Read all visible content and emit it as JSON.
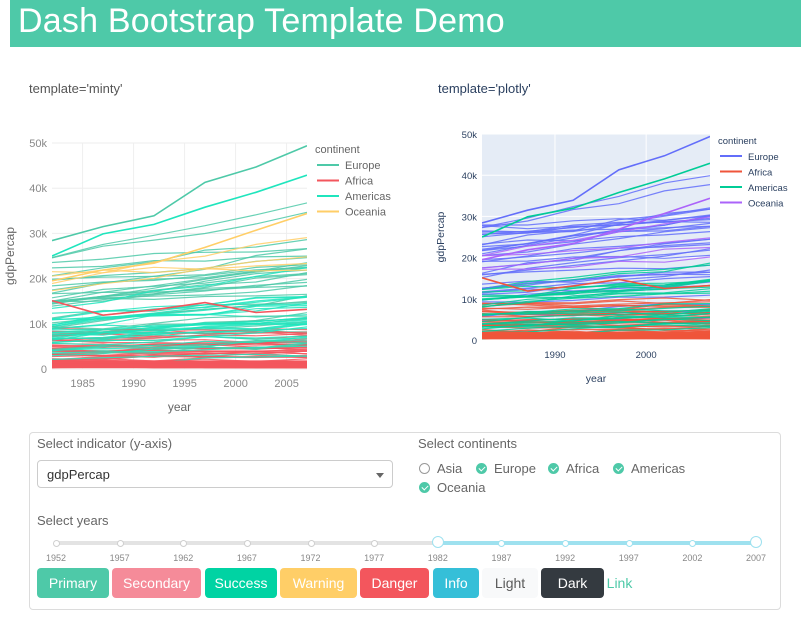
{
  "header": {
    "title": "Dash Bootstrap Template Demo"
  },
  "left_chart": {
    "template_label": "template='minty'",
    "palette": [
      "#4ec9a8",
      "#f3565d",
      "#1fe5bd",
      "#ffce67"
    ],
    "grid": "#eeeeee",
    "bg": "#ffffff",
    "tick_color": "#888888",
    "label_color": "#666666"
  },
  "right_chart": {
    "template_label": "template='plotly'",
    "palette": [
      "#636efa",
      "#ef553b",
      "#00cc96",
      "#ab63fa"
    ],
    "grid": "#ffffff",
    "bg": "#e5ecf6",
    "tick_color": "#2a3f5f",
    "label_color": "#2a3f5f"
  },
  "chart_data": [
    {
      "type": "line",
      "title": "",
      "xlabel": "year",
      "ylabel": "gdpPercap",
      "xlim": [
        1982,
        2007
      ],
      "ylim": [
        0,
        50000
      ],
      "x_ticks": [
        1985,
        1990,
        1995,
        2000,
        2005
      ],
      "x_tick_labels": [
        "1985",
        "1990",
        "1995",
        "2000",
        "2005"
      ],
      "y_ticks": [
        0,
        10000,
        20000,
        30000,
        40000,
        50000
      ],
      "y_tick_labels": [
        "0",
        "10k",
        "20k",
        "30k",
        "40k",
        "50k"
      ],
      "legend": {
        "title": "continent",
        "position": "top-right"
      },
      "x": [
        1982,
        1987,
        1992,
        1997,
        2002,
        2007
      ],
      "series": [
        {
          "name": "Europe",
          "values": [
            28400,
            31500,
            33900,
            41300,
            44700,
            49400
          ]
        },
        {
          "name": "Africa",
          "values": [
            15100,
            11900,
            13100,
            14700,
            12500,
            13200
          ]
        },
        {
          "name": "Americas",
          "values": [
            25000,
            29900,
            32000,
            35800,
            39100,
            42900
          ]
        },
        {
          "name": "Oceania",
          "values": [
            19500,
            21900,
            23400,
            26900,
            30700,
            34400
          ]
        }
      ]
    },
    {
      "type": "line",
      "title": "",
      "xlabel": "year",
      "ylabel": "gdpPercap",
      "xlim": [
        1982,
        2007
      ],
      "ylim": [
        0,
        50000
      ],
      "x_ticks": [
        1990,
        2000
      ],
      "x_tick_labels": [
        "1990",
        "2000"
      ],
      "y_ticks": [
        0,
        10000,
        20000,
        30000,
        40000,
        50000
      ],
      "y_tick_labels": [
        "0",
        "10k",
        "20k",
        "30k",
        "40k",
        "50k"
      ],
      "legend": {
        "title": "continent",
        "position": "top-right"
      },
      "x": [
        1982,
        1987,
        1992,
        1997,
        2002,
        2007
      ],
      "series": [
        {
          "name": "Europe",
          "values": [
            28400,
            31500,
            33900,
            41300,
            44700,
            49400
          ]
        },
        {
          "name": "Africa",
          "values": [
            15100,
            11900,
            13100,
            14700,
            12500,
            13200
          ]
        },
        {
          "name": "Americas",
          "values": [
            25000,
            29900,
            32000,
            35800,
            39100,
            42900
          ]
        },
        {
          "name": "Oceania",
          "values": [
            19500,
            21900,
            23400,
            26900,
            30700,
            34400
          ]
        }
      ]
    }
  ],
  "controls": {
    "indicator_label": "Select indicator (y-axis)",
    "indicator_value": "gdpPercap",
    "continents_label": "Select continents",
    "continents": [
      {
        "label": "Asia",
        "checked": false
      },
      {
        "label": "Europe",
        "checked": true
      },
      {
        "label": "Africa",
        "checked": true
      },
      {
        "label": "Americas",
        "checked": true
      },
      {
        "label": "Oceania",
        "checked": true
      }
    ],
    "years_label": "Select years",
    "year_marks": [
      "1952",
      "1957",
      "1962",
      "1967",
      "1972",
      "1977",
      "1982",
      "1987",
      "1992",
      "1997",
      "2002",
      "2007"
    ],
    "year_range": [
      "1982",
      "2007"
    ],
    "accent": "#9ee1ef"
  },
  "buttons": [
    {
      "label": "Primary",
      "color": "#4ec9a8",
      "text": "#ffffff"
    },
    {
      "label": "Secondary",
      "color": "#f58b99",
      "text": "#ffffff"
    },
    {
      "label": "Success",
      "color": "#00d3a3",
      "text": "#ffffff"
    },
    {
      "label": "Warning",
      "color": "#ffce67",
      "text": "#ffffff"
    },
    {
      "label": "Danger",
      "color": "#f3565d",
      "text": "#ffffff"
    },
    {
      "label": "Info",
      "color": "#35bfd8",
      "text": "#ffffff"
    },
    {
      "label": "Light",
      "color": "#f8f9fa",
      "text": "#5a5a5a"
    },
    {
      "label": "Dark",
      "color": "#343a40",
      "text": "#ffffff"
    },
    {
      "label": "Link",
      "color": "transparent",
      "text": "#4ec9a8"
    }
  ]
}
